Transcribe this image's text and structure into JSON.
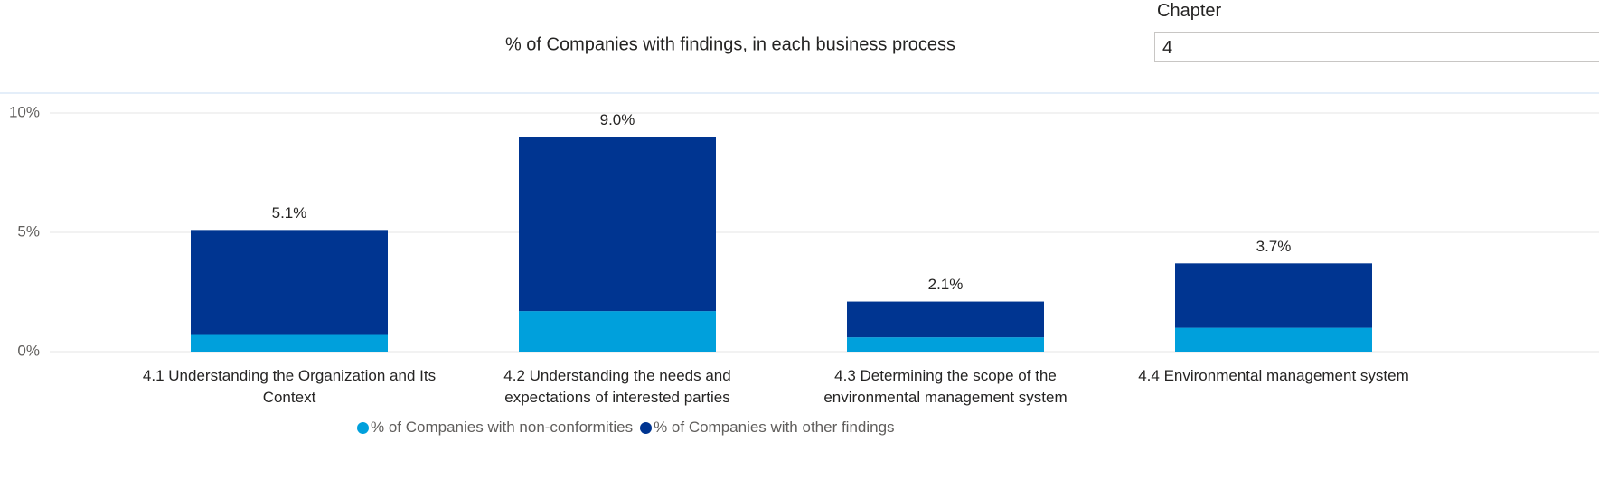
{
  "slicer": {
    "label": "Chapter",
    "value": "4"
  },
  "chart_data": {
    "type": "stacked_bar",
    "title": "% of Companies with findings, in each business process",
    "categories": [
      "4.1 Understanding the Organization and Its Context",
      "4.2 Understanding the needs and expectations of interested parties",
      "4.3 Determining the scope of the environmental management system",
      "4.4 Environmental management system"
    ],
    "series": [
      {
        "name": "% of Companies with non-conformities",
        "color": "#00a0dc",
        "values": [
          0.7,
          1.7,
          0.6,
          1.0
        ]
      },
      {
        "name": "% of Companies with other findings",
        "color": "#003591",
        "values": [
          4.4,
          7.3,
          1.5,
          2.7
        ]
      }
    ],
    "totals": [
      5.1,
      9.0,
      2.1,
      3.7
    ],
    "total_labels": [
      "5.1%",
      "9.0%",
      "2.1%",
      "3.7%"
    ],
    "ylim": [
      0,
      10
    ],
    "yticks": [
      {
        "value": 0,
        "label": "0%"
      },
      {
        "value": 5,
        "label": "5%"
      },
      {
        "value": 10,
        "label": "10%"
      }
    ],
    "grid": true
  }
}
